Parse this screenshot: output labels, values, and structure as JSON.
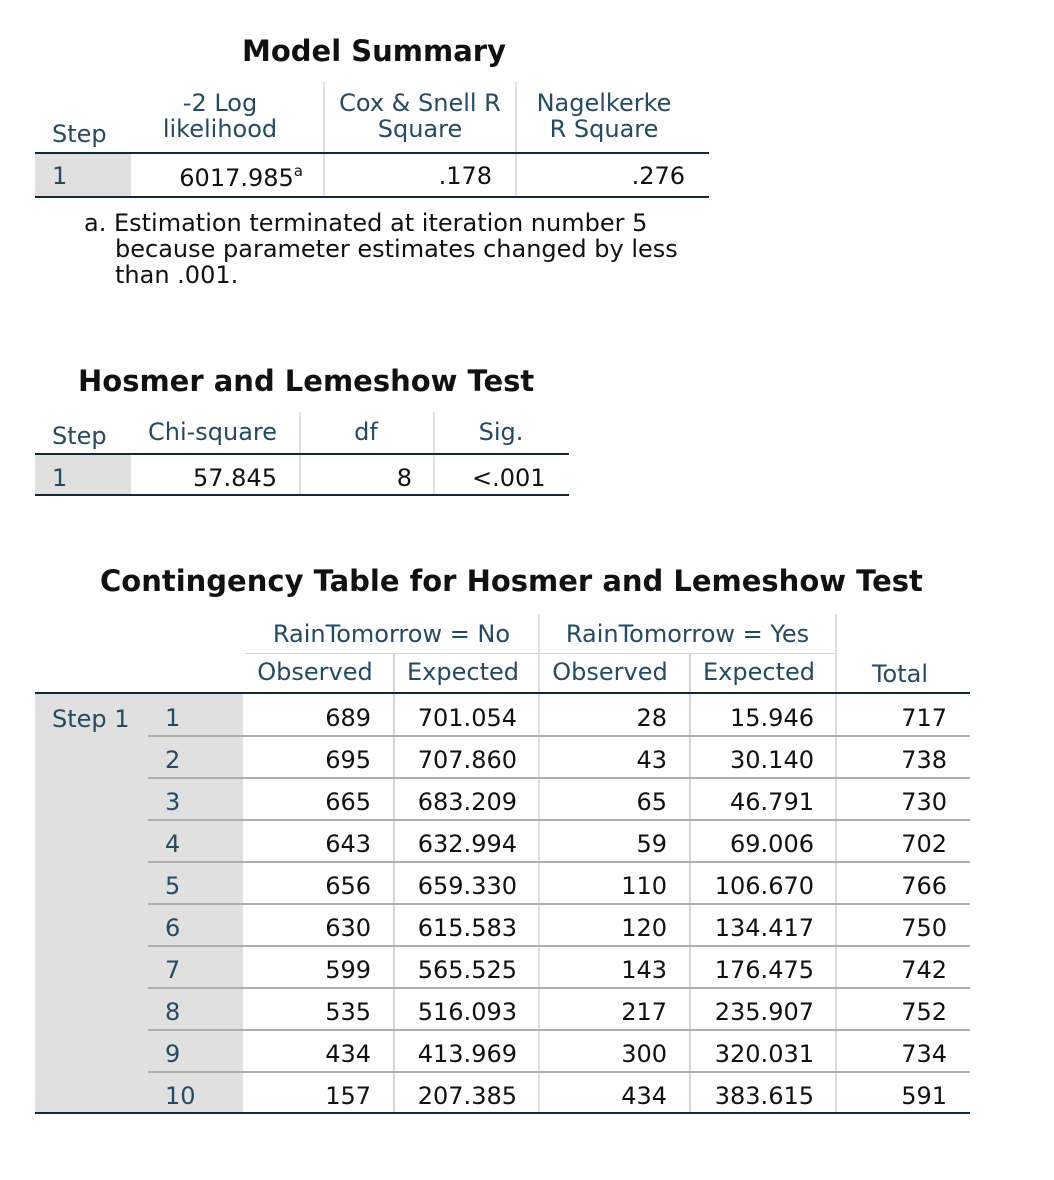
{
  "model_summary": {
    "title": "Model Summary",
    "headers": {
      "step": "Step",
      "neg2ll": [
        "-2 Log",
        "likelihood"
      ],
      "coxsnell": [
        "Cox & Snell R",
        "Square"
      ],
      "nagelkerke": [
        "Nagelkerke",
        "R Square"
      ]
    },
    "row": {
      "step": "1",
      "neg2ll": "6017.985",
      "neg2ll_sup": "a",
      "coxsnell": ".178",
      "nagelkerke": ".276"
    },
    "footnote": [
      "a. Estimation terminated at iteration number 5",
      "because parameter estimates changed by less",
      "than .001."
    ]
  },
  "hosmer": {
    "title": "Hosmer and Lemeshow Test",
    "headers": {
      "step": "Step",
      "chi": "Chi-square",
      "df": "df",
      "sig": "Sig."
    },
    "row": {
      "step": "1",
      "chi": "57.845",
      "df": "8",
      "sig": "<.001"
    }
  },
  "contingency": {
    "title": "Contingency Table for Hosmer and Lemeshow Test",
    "group_no": "RainTomorrow = No",
    "group_yes": "RainTomorrow = Yes",
    "observed": "Observed",
    "expected": "Expected",
    "total": "Total",
    "step_label": "Step 1",
    "rows": [
      [
        "1",
        "689",
        "701.054",
        "28",
        "15.946",
        "717"
      ],
      [
        "2",
        "695",
        "707.860",
        "43",
        "30.140",
        "738"
      ],
      [
        "3",
        "665",
        "683.209",
        "65",
        "46.791",
        "730"
      ],
      [
        "4",
        "643",
        "632.994",
        "59",
        "69.006",
        "702"
      ],
      [
        "5",
        "656",
        "659.330",
        "110",
        "106.670",
        "766"
      ],
      [
        "6",
        "630",
        "615.583",
        "120",
        "134.417",
        "750"
      ],
      [
        "7",
        "599",
        "565.525",
        "143",
        "176.475",
        "742"
      ],
      [
        "8",
        "535",
        "516.093",
        "217",
        "235.907",
        "752"
      ],
      [
        "9",
        "434",
        "413.969",
        "300",
        "320.031",
        "734"
      ],
      [
        "10",
        "157",
        "207.385",
        "434",
        "383.615",
        "591"
      ]
    ]
  }
}
